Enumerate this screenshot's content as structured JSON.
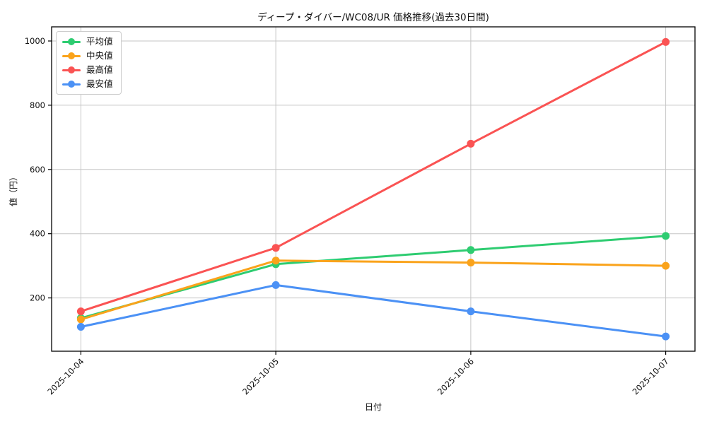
{
  "chart_data": {
    "type": "line",
    "title": "ディープ・ダイバー/WC08/UR 価格推移(過去30日間)",
    "xlabel": "日付",
    "ylabel": "値（円）",
    "categories": [
      "2025-10-04",
      "2025-10-05",
      "2025-10-06",
      "2025-10-07"
    ],
    "series": [
      {
        "name": "平均値",
        "color": "#2ecc71",
        "values": [
          137,
          305,
          349,
          393
        ]
      },
      {
        "name": "中央値",
        "color": "#faa31b",
        "values": [
          133,
          316,
          310,
          300
        ]
      },
      {
        "name": "最高値",
        "color": "#fa5353",
        "values": [
          158,
          356,
          680,
          997
        ]
      },
      {
        "name": "最安値",
        "color": "#4b91f5",
        "values": [
          110,
          240,
          158,
          80
        ]
      }
    ],
    "yticks": [
      200,
      400,
      600,
      800,
      1000
    ],
    "ylim": [
      34,
      1044
    ],
    "grid": true,
    "grid_color": "#c6c6c6",
    "axis_color": "#000000",
    "legend_position": "upper-left"
  }
}
